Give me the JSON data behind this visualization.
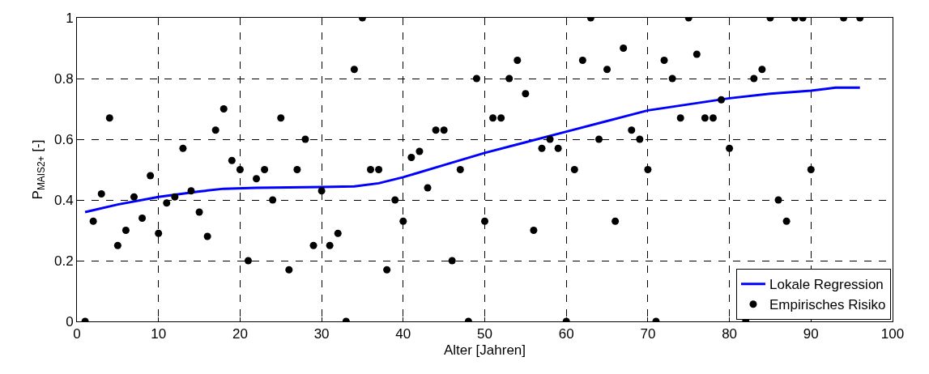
{
  "chart_data": {
    "type": "scatter",
    "xlabel": "Alter [Jahren]",
    "ylabel": "P$_{MAIS2+}$ [-]",
    "xlim": [
      0,
      100
    ],
    "xticks": [
      0,
      10,
      20,
      30,
      40,
      50,
      60,
      70,
      80,
      90,
      100
    ],
    "ylim": [
      0,
      1
    ],
    "yticks": [
      0,
      0.2,
      0.4,
      0.6,
      0.8,
      1
    ],
    "grid": true,
    "legend": "bottom right",
    "series": [
      {
        "name": "Lokale Regression",
        "type": "line",
        "color": "#0000ff",
        "marker": "none",
        "line_style": "solid",
        "x": [
          1,
          5,
          10,
          15,
          18,
          22,
          30,
          34,
          37,
          40,
          45,
          50,
          55,
          60,
          65,
          70,
          75,
          80,
          85,
          90,
          93,
          96
        ],
        "values": [
          0.36,
          0.385,
          0.41,
          0.428,
          0.437,
          0.44,
          0.443,
          0.445,
          0.455,
          0.475,
          0.515,
          0.555,
          0.59,
          0.625,
          0.66,
          0.695,
          0.715,
          0.735,
          0.75,
          0.76,
          0.77,
          0.77
        ]
      },
      {
        "name": "Empirisches Risiko",
        "color": "#000000",
        "marker": "circle",
        "x": [
          1,
          2,
          3,
          4,
          5,
          6,
          7,
          8,
          9,
          10,
          11,
          12,
          13,
          14,
          15,
          16,
          17,
          18,
          19,
          20,
          21,
          22,
          23,
          24,
          25,
          26,
          27,
          28,
          29,
          30,
          31,
          32,
          33,
          34,
          35,
          36,
          37,
          38,
          39,
          40,
          41,
          42,
          43,
          44,
          45,
          46,
          47,
          48,
          49,
          50,
          51,
          52,
          53,
          54,
          55,
          56,
          57,
          58,
          59,
          60,
          61,
          62,
          63,
          64,
          65,
          66,
          67,
          68,
          69,
          70,
          71,
          72,
          73,
          74,
          75,
          76,
          77,
          78,
          79,
          80,
          82,
          83,
          84,
          85,
          86,
          87,
          88,
          89,
          90,
          94,
          96
        ],
        "values": [
          0,
          0.33,
          0.42,
          0.67,
          0.25,
          0.3,
          0.41,
          0.34,
          0.48,
          0.29,
          0.39,
          0.41,
          0.57,
          0.43,
          0.36,
          0.28,
          0.63,
          0.7,
          0.53,
          0.5,
          0.2,
          0.47,
          0.5,
          0.4,
          0.67,
          0.17,
          0.5,
          0.6,
          0.25,
          0.43,
          0.25,
          0.29,
          0,
          0.83,
          1,
          0.5,
          0.5,
          0.17,
          0.4,
          0.33,
          0.54,
          0.56,
          0.44,
          0.63,
          0.63,
          0.2,
          0.5,
          0,
          0.8,
          0.33,
          0.67,
          0.67,
          0.8,
          0.86,
          0.75,
          0.3,
          0.57,
          0.6,
          0.57,
          0,
          0.5,
          0.86,
          1,
          0.6,
          0.83,
          0.33,
          0.9,
          0.63,
          0.6,
          0.5,
          0,
          0.86,
          0.8,
          0.67,
          1,
          0.88,
          0.67,
          0.67,
          0.73,
          0.57,
          0,
          0.8,
          0.83,
          1,
          0.4,
          0.33,
          1,
          1,
          0.5,
          1,
          1
        ]
      }
    ]
  }
}
